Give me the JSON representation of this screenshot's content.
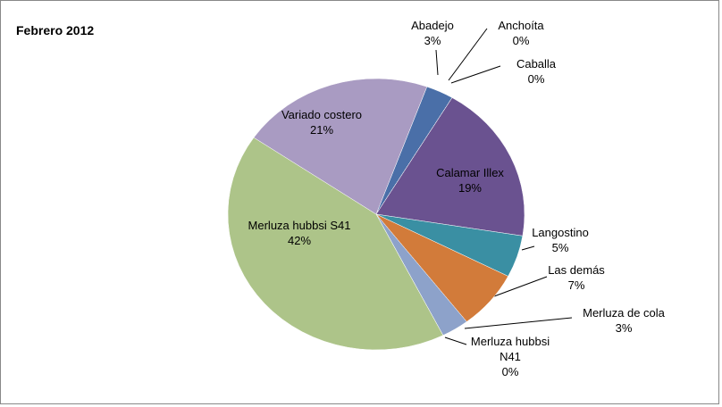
{
  "chart_data": {
    "type": "pie",
    "title": "Febrero 2012",
    "categories": [
      "Abadejo",
      "Anchoíta",
      "Caballa",
      "Calamar Illex",
      "Langostino",
      "Las demás",
      "Merluza de cola",
      "Merluza hubbsi N41",
      "Merluza hubbsi S41",
      "Variado costero"
    ],
    "values": [
      3,
      0,
      0,
      19,
      5,
      7,
      3,
      0,
      42,
      21
    ],
    "value_labels": [
      "3%",
      "0%",
      "0%",
      "19%",
      "5%",
      "7%",
      "3%",
      "0%",
      "42%",
      "21%"
    ],
    "colors": [
      "#4a6fa8",
      "#3d5f98",
      "#9a4a48",
      "#6a5290",
      "#3a8fa3",
      "#d27b3a",
      "#8da2ca",
      "#d88c88",
      "#adc489",
      "#a99bc2"
    ]
  }
}
